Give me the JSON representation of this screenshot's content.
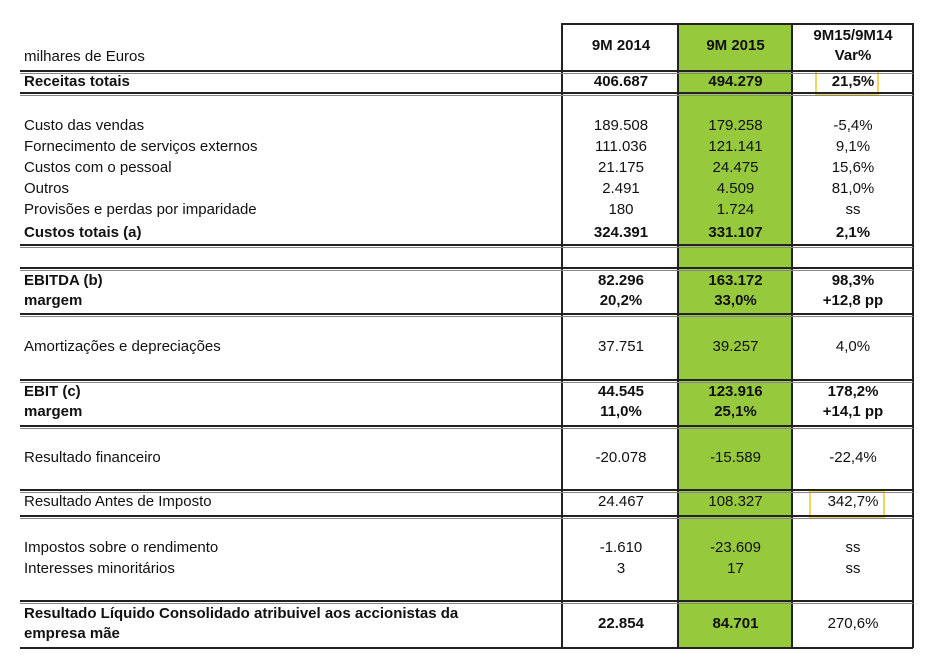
{
  "header": {
    "unit_label": "milhares de Euros",
    "col1": "9M 2014",
    "col2": "9M 2015",
    "col3_line1": "9M15/9M14",
    "col3_line2": "Var%"
  },
  "colors": {
    "highlight_column": "#97c93d",
    "highlight_box": "#f2d65a"
  },
  "rows": [
    {
      "label": "Receitas totais",
      "v1": "406.687",
      "v2": "494.279",
      "v3": "21,5%",
      "bold": true
    },
    {
      "label": "Custo das vendas",
      "v1": "189.508",
      "v2": "179.258",
      "v3": "-5,4%"
    },
    {
      "label": "Fornecimento de serviços externos",
      "v1": "111.036",
      "v2": "121.141",
      "v3": "9,1%"
    },
    {
      "label": "Custos com o pessoal",
      "v1": "21.175",
      "v2": "24.475",
      "v3": "15,6%"
    },
    {
      "label": "Outros",
      "v1": "2.491",
      "v2": "4.509",
      "v3": "81,0%"
    },
    {
      "label": "Provisões e perdas por imparidade",
      "v1": "180",
      "v2": "1.724",
      "v3": "ss"
    },
    {
      "label": "Custos totais (a)",
      "v1": "324.391",
      "v2": "331.107",
      "v3": "2,1%",
      "bold": true
    },
    {
      "label": "EBITDA (b)",
      "v1": "82.296",
      "v2": "163.172",
      "v3": "98,3%",
      "bold": true
    },
    {
      "label": "margem",
      "v1": "20,2%",
      "v2": "33,0%",
      "v3": "+12,8 pp",
      "bold": true
    },
    {
      "label": "Amortizações e depreciações",
      "v1": "37.751",
      "v2": "39.257",
      "v3": "4,0%"
    },
    {
      "label": "EBIT (c)",
      "v1": "44.545",
      "v2": "123.916",
      "v3": "178,2%",
      "bold": true
    },
    {
      "label": "margem",
      "v1": "11,0%",
      "v2": "25,1%",
      "v3": "+14,1 pp",
      "bold": true
    },
    {
      "label": "Resultado financeiro",
      "v1": "-20.078",
      "v2": "-15.589",
      "v3": "-22,4%"
    },
    {
      "label": "Resultado Antes de Imposto",
      "v1": "24.467",
      "v2": "108.327",
      "v3": "342,7%"
    },
    {
      "label": "Impostos sobre o rendimento",
      "v1": "-1.610",
      "v2": "-23.609",
      "v3": "ss"
    },
    {
      "label": "Interesses minoritários",
      "v1": "3",
      "v2": "17",
      "v3": "ss"
    }
  ],
  "final": {
    "label_line1": "Resultado Líquido Consolidado atribuivel aos accionistas da",
    "label_line2": "empresa mãe",
    "v1": "22.854",
    "v2": "84.701",
    "v3": "270,6%"
  }
}
